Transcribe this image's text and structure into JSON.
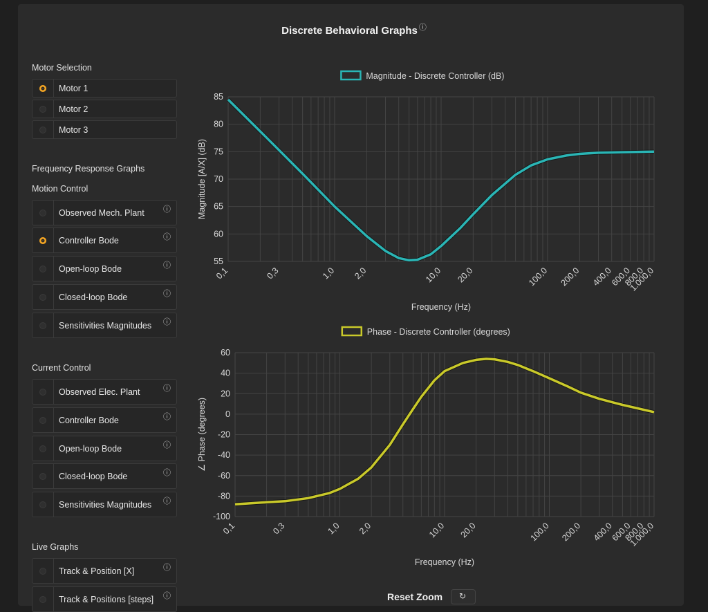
{
  "page": {
    "title": "Discrete Behavioral Graphs",
    "info_icon": "info-icon",
    "info_glyph": "ⓘ"
  },
  "motor": {
    "heading": "Motor Selection",
    "items": [
      {
        "label": "Motor 1",
        "selected": true
      },
      {
        "label": "Motor 2",
        "selected": false
      },
      {
        "label": "Motor 3",
        "selected": false
      }
    ]
  },
  "freq": {
    "heading": "Frequency Response Graphs"
  },
  "motion": {
    "heading": "Motion Control",
    "items": [
      {
        "label": "Observed Mech. Plant",
        "selected": false
      },
      {
        "label": "Controller Bode",
        "selected": true
      },
      {
        "label": "Open-loop Bode",
        "selected": false
      },
      {
        "label": "Closed-loop Bode",
        "selected": false
      },
      {
        "label": "Sensitivities Magnitudes",
        "selected": false
      }
    ]
  },
  "current": {
    "heading": "Current Control",
    "items": [
      {
        "label": "Observed Elec. Plant",
        "selected": false
      },
      {
        "label": "Controller Bode",
        "selected": false
      },
      {
        "label": "Open-loop Bode",
        "selected": false
      },
      {
        "label": "Closed-loop Bode",
        "selected": false
      },
      {
        "label": "Sensitivities Magnitudes",
        "selected": false
      }
    ]
  },
  "live": {
    "heading": "Live Graphs",
    "items": [
      {
        "label": "Track & Position [X]",
        "selected": false
      },
      {
        "label": "Track & Positions [steps]",
        "selected": false
      }
    ]
  },
  "reset": {
    "label": "Reset Zoom",
    "icon": "reset-icon"
  },
  "colors": {
    "magnitude": "#2ab5b5",
    "phase": "#c9c92a",
    "accent": "#f5a623"
  },
  "chart_data": [
    {
      "type": "line",
      "legend": "Magnitude - Discrete Controller (dB)",
      "xlabel": "Frequency (Hz)",
      "ylabel": "Magnitude [A/X] (dB)",
      "xscale": "log",
      "xlim": [
        0.1,
        1000
      ],
      "ylim": [
        55,
        85
      ],
      "grid": true,
      "legend_position": "top-center",
      "yticks": [
        55,
        60,
        65,
        70,
        75,
        80,
        85
      ],
      "xticks": [
        "0,1",
        "0,3",
        "1,0",
        "2,0",
        "10,0",
        "20,0",
        "100,0",
        "200,0",
        "400,0",
        "600,0",
        "800,0",
        "1.000,0"
      ],
      "xtick_values": [
        0.1,
        0.3,
        1,
        2,
        10,
        20,
        100,
        200,
        400,
        600,
        800,
        1000
      ],
      "series": [
        {
          "x": [
            0.1,
            0.2,
            0.3,
            0.5,
            1,
            2,
            3,
            4,
            5,
            6,
            8,
            10,
            15,
            20,
            30,
            50,
            70,
            100,
            150,
            200,
            300,
            500,
            1000
          ],
          "y": [
            84.5,
            78.7,
            75.3,
            71.0,
            65.0,
            59.6,
            56.9,
            55.6,
            55.2,
            55.3,
            56.3,
            57.8,
            61.0,
            63.6,
            67.1,
            70.8,
            72.5,
            73.6,
            74.3,
            74.6,
            74.8,
            74.9,
            75.0
          ]
        }
      ]
    },
    {
      "type": "line",
      "legend": "Phase - Discrete Controller (degrees)",
      "xlabel": "Frequency (Hz)",
      "ylabel": "∠ Phase (degrees)",
      "xscale": "log",
      "xlim": [
        0.1,
        1000
      ],
      "ylim": [
        -100,
        60
      ],
      "grid": true,
      "legend_position": "top-center",
      "yticks": [
        -100,
        -80,
        -60,
        -40,
        -20,
        0,
        20,
        40,
        60
      ],
      "xticks": [
        "0,1",
        "0,3",
        "1,0",
        "2,0",
        "10,0",
        "20,0",
        "100,0",
        "200,0",
        "400,0",
        "600,0",
        "800,0",
        "1.000,0"
      ],
      "xtick_values": [
        0.1,
        0.3,
        1,
        2,
        10,
        20,
        100,
        200,
        400,
        600,
        800,
        1000
      ],
      "series": [
        {
          "x": [
            0.1,
            0.2,
            0.3,
            0.5,
            0.8,
            1,
            1.5,
            2,
            3,
            4,
            5,
            6,
            8,
            10,
            15,
            20,
            25,
            30,
            40,
            50,
            70,
            100,
            150,
            200,
            300,
            500,
            1000
          ],
          "y": [
            -88,
            -86,
            -85,
            -82,
            -77,
            -73,
            -63,
            -52,
            -30,
            -10,
            5,
            17,
            33,
            42,
            50,
            53,
            54,
            53.5,
            51,
            48,
            42,
            35,
            27,
            21,
            15,
            9,
            2
          ]
        }
      ]
    }
  ]
}
